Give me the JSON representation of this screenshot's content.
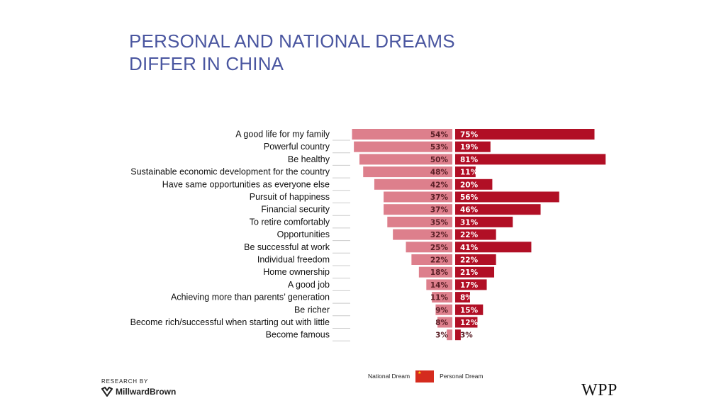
{
  "title": {
    "line1": "PERSONAL AND NATIONAL DREAMS",
    "line2": "DIFFER IN CHINA"
  },
  "chart_data": {
    "type": "bar",
    "title": "PERSONAL AND NATIONAL DREAMS DIFFER IN CHINA",
    "categories": [
      "A good life for my family",
      "Powerful country",
      "Be healthy",
      "Sustainable economic development for the country",
      "Have same opportunities as everyone else",
      "Pursuit of happiness",
      "Financial security",
      "To retire comfortably",
      "Opportunities",
      "Be successful at work",
      "Individual freedom",
      "Home ownership",
      "A good job",
      "Achieving more than parents’ generation",
      "Be richer",
      "Become rich/successful when starting out with little",
      "Become famous"
    ],
    "series": [
      {
        "name": "National Dream",
        "values": [
          54,
          53,
          50,
          48,
          42,
          37,
          37,
          35,
          32,
          25,
          22,
          18,
          14,
          11,
          9,
          8,
          3
        ],
        "labels": [
          "54%",
          "53%",
          "50%",
          "48%",
          "42%",
          "37%",
          "37%",
          "35%",
          "32%",
          "25%",
          "22%",
          "18%",
          "14%",
          "11%",
          "9%",
          "8%",
          "3%"
        ],
        "color": "#dd7f8c"
      },
      {
        "name": "Personal Dream",
        "values": [
          75,
          19,
          81,
          11,
          20,
          56,
          46,
          31,
          22,
          41,
          22,
          21,
          17,
          8,
          15,
          12,
          3
        ],
        "labels": [
          "75%",
          "19%",
          "81%",
          "11%",
          "20%",
          "56%",
          "46%",
          "31%",
          "22%",
          "41%",
          "22%",
          "21%",
          "17%",
          "8%",
          "15%",
          "12%",
          "3%"
        ],
        "color": "#b10f25"
      }
    ],
    "legend_position": "bottom-center",
    "unit": "%"
  },
  "legend": {
    "national_label": "National Dream",
    "personal_label": "Personal Dream",
    "flag_icon": "china-flag-icon"
  },
  "footer": {
    "research_by": "RESEARCH BY",
    "millward_brown": "MillwardBrown",
    "wpp": "WPP"
  }
}
